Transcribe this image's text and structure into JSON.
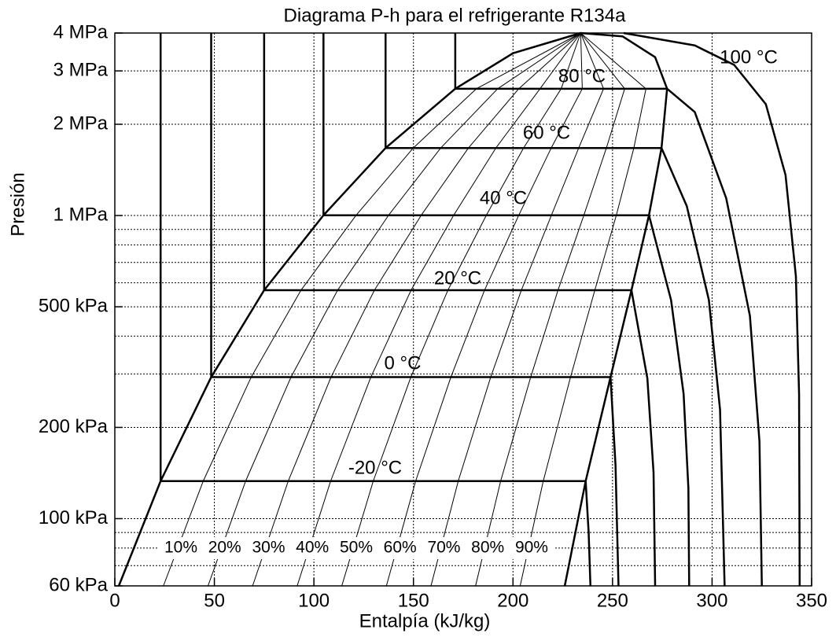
{
  "chart_data": {
    "type": "line",
    "title": "Diagrama P-h para el refrigerante R134a",
    "xlabel": "Entalpía (kJ/kg)",
    "ylabel": "Presión",
    "xlim": [
      0,
      350
    ],
    "ylim": [
      60,
      4000
    ],
    "yscale": "log",
    "grid": true,
    "color": "#000000",
    "xticks": [
      0,
      50,
      100,
      150,
      200,
      250,
      300,
      350
    ],
    "yticks": [
      {
        "value": 60,
        "label": "60 kPa"
      },
      {
        "value": 100,
        "label": "100 kPa"
      },
      {
        "value": 200,
        "label": "200 kPa"
      },
      {
        "value": 500,
        "label": "500 kPa"
      },
      {
        "value": 1000,
        "label": "1 MPa"
      },
      {
        "value": 2000,
        "label": "2 MPa"
      },
      {
        "value": 3000,
        "label": "3 MPa"
      },
      {
        "value": 4000,
        "label": "4 MPa"
      }
    ],
    "yminor": [
      70,
      80,
      90,
      300,
      400,
      600,
      700,
      800,
      900
    ],
    "saturation": {
      "x": [
        2,
        23,
        48.4,
        75,
        104.8,
        136,
        171,
        200,
        234,
        255,
        271.4,
        277.4,
        274.6,
        268.3,
        259.5,
        249,
        236.5,
        226
      ],
      "values": [
        60,
        133,
        293,
        567,
        1002,
        1670,
        2620,
        3430,
        4000,
        3900,
        3330,
        2620,
        1670,
        1002,
        567,
        293,
        133,
        60
      ]
    },
    "isotherms": [
      {
        "name": "-20 °C",
        "x": [
          23,
          23,
          236.5,
          238,
          238.9
        ],
        "values": [
          4000,
          133,
          133,
          90,
          60
        ]
      },
      {
        "name": "0 °C",
        "x": [
          48.4,
          48.4,
          249,
          251.5,
          253
        ],
        "values": [
          4000,
          293,
          293,
          150,
          60
        ]
      },
      {
        "name": "20 °C",
        "x": [
          75,
          75,
          259.5,
          267.5,
          270.6,
          271.4
        ],
        "values": [
          4000,
          567,
          567,
          290,
          142,
          60
        ]
      },
      {
        "name": "40 °C",
        "x": [
          104.8,
          104.8,
          268.3,
          279.4,
          285.7,
          288.1,
          288.5
        ],
        "values": [
          4000,
          1002,
          1002,
          526,
          258,
          126,
          60
        ]
      },
      {
        "name": "60 °C",
        "x": [
          136,
          136,
          274.6,
          287.3,
          298.4,
          304,
          306.3
        ],
        "values": [
          4000,
          1670,
          1670,
          1074,
          526,
          229,
          60
        ]
      },
      {
        "name": "80 °C",
        "x": [
          171,
          171,
          277.4,
          291.3,
          307.1,
          319,
          323.8,
          325
        ],
        "values": [
          4000,
          2620,
          2620,
          2195,
          1140,
          467,
          180,
          60
        ]
      },
      {
        "name": "100 °C",
        "x": [
          255.6,
          291.3,
          311.1,
          327,
          336.9,
          342.1,
          343.7,
          344
        ],
        "values": [
          4000,
          3640,
          3140,
          2330,
          1360,
          630,
          258,
          60
        ]
      }
    ],
    "quality": [
      {
        "name": "10%",
        "x": [
          24.4,
          44.4,
          68.5,
          93.5,
          121.2,
          149.9,
          181.6,
          234
        ],
        "values": [
          60,
          133,
          293,
          567,
          1002,
          1670,
          2620,
          4000
        ]
      },
      {
        "name": "20%",
        "x": [
          46.8,
          65.7,
          88.5,
          111.9,
          137.5,
          163.7,
          192.3,
          234
        ],
        "values": [
          60,
          133,
          293,
          567,
          1002,
          1670,
          2620,
          4000
        ]
      },
      {
        "name": "30%",
        "x": [
          69.2,
          87.1,
          108.6,
          130.4,
          153.9,
          177.6,
          202.9,
          234
        ],
        "values": [
          60,
          133,
          293,
          567,
          1002,
          1670,
          2620,
          4000
        ]
      },
      {
        "name": "40%",
        "x": [
          91.6,
          108.4,
          128.6,
          148.8,
          170.2,
          191.4,
          213.6,
          234
        ],
        "values": [
          60,
          133,
          293,
          567,
          1002,
          1670,
          2620,
          4000
        ]
      },
      {
        "name": "50%",
        "x": [
          114,
          129.8,
          148.7,
          167.3,
          186.6,
          205.3,
          224.2,
          234
        ],
        "values": [
          60,
          133,
          293,
          567,
          1002,
          1670,
          2620,
          4000
        ]
      },
      {
        "name": "60%",
        "x": [
          136.4,
          151.1,
          168.8,
          185.7,
          202.9,
          219.2,
          234.8,
          234
        ],
        "values": [
          60,
          133,
          293,
          567,
          1002,
          1670,
          2620,
          4000
        ]
      },
      {
        "name": "70%",
        "x": [
          158.8,
          172.5,
          188.8,
          204.2,
          219.3,
          233,
          245.5,
          234
        ],
        "values": [
          60,
          133,
          293,
          567,
          1002,
          1670,
          2620,
          4000
        ]
      },
      {
        "name": "80%",
        "x": [
          181.2,
          193.8,
          208.9,
          222.6,
          235.6,
          246.9,
          256.1,
          234
        ],
        "values": [
          60,
          133,
          293,
          567,
          1002,
          1670,
          2620,
          4000
        ]
      },
      {
        "name": "90%",
        "x": [
          203.6,
          215.2,
          228.9,
          241.1,
          251.9,
          260.7,
          266.8,
          234
        ],
        "values": [
          60,
          133,
          293,
          567,
          1002,
          1670,
          2620,
          4000
        ]
      }
    ]
  }
}
